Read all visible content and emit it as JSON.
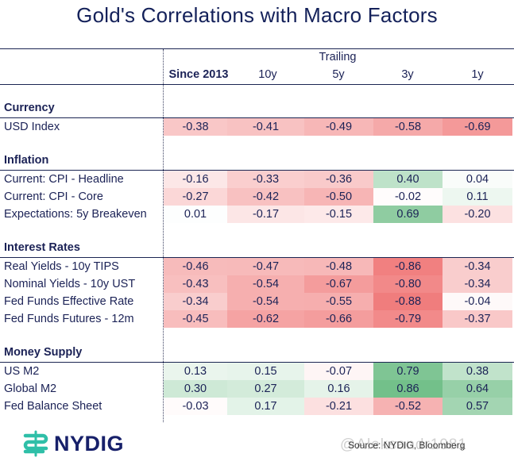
{
  "header": {
    "title": "Gold's Correlations with Macro Factors"
  },
  "chart_data": {
    "type": "heatmap",
    "title": "Gold's Correlations with Macro Factors",
    "column_group_label": "Trailing",
    "columns": [
      "Since 2013",
      "10y",
      "5y",
      "3y",
      "1y"
    ],
    "value_range": [
      -1,
      1
    ],
    "color_scale": {
      "negative": "#f07a7a",
      "neutral": "#ffffff",
      "positive": "#6dbd85"
    },
    "sections": [
      {
        "name": "Currency",
        "rows": [
          {
            "label": "USD Index",
            "values": [
              -0.38,
              -0.41,
              -0.49,
              -0.58,
              -0.69
            ]
          }
        ]
      },
      {
        "name": "Inflation",
        "rows": [
          {
            "label": "Current: CPI - Headline",
            "values": [
              -0.16,
              -0.33,
              -0.36,
              0.4,
              0.04
            ]
          },
          {
            "label": "Current: CPI - Core",
            "values": [
              -0.27,
              -0.42,
              -0.5,
              -0.02,
              0.11
            ]
          },
          {
            "label": "Expectations: 5y Breakeven",
            "values": [
              0.01,
              -0.17,
              -0.15,
              0.69,
              -0.2
            ]
          }
        ]
      },
      {
        "name": "Interest Rates",
        "rows": [
          {
            "label": "Real Yields - 10y TIPS",
            "values": [
              -0.46,
              -0.47,
              -0.48,
              -0.86,
              -0.34
            ]
          },
          {
            "label": "Nominal Yields - 10y UST",
            "values": [
              -0.43,
              -0.54,
              -0.67,
              -0.8,
              -0.34
            ]
          },
          {
            "label": "Fed Funds Effective Rate",
            "values": [
              -0.34,
              -0.54,
              -0.55,
              -0.88,
              -0.04
            ]
          },
          {
            "label": "Fed Funds Futures - 12m",
            "values": [
              -0.45,
              -0.62,
              -0.66,
              -0.79,
              -0.37
            ]
          }
        ]
      },
      {
        "name": "Money Supply",
        "rows": [
          {
            "label": "US M2",
            "values": [
              0.13,
              0.15,
              -0.07,
              0.79,
              0.38
            ]
          },
          {
            "label": "Global M2",
            "values": [
              0.3,
              0.27,
              0.16,
              0.86,
              0.64
            ]
          },
          {
            "label": "Fed Balance Sheet",
            "values": [
              -0.03,
              0.17,
              -0.21,
              -0.52,
              0.57
            ]
          }
        ]
      }
    ]
  },
  "footer": {
    "logo_text": "NYDIG",
    "source": "Source: NYDIG, Bloomberg",
    "watermark": "@Aleksandr1981"
  }
}
